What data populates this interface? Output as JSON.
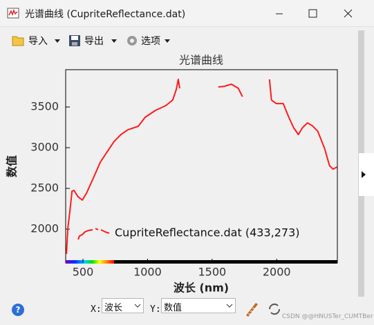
{
  "window": {
    "title": "光谱曲线 (CupriteReflectance.dat)"
  },
  "toolbar": {
    "items": [
      "导入",
      "导出",
      "选项"
    ]
  },
  "chart_data": {
    "type": "line",
    "title": "光谱曲线",
    "x_label": "波长 (nm)",
    "y_label": "数值",
    "x": [
      372,
      383,
      399,
      415,
      431,
      460,
      495,
      527,
      580,
      634,
      687,
      741,
      794,
      848,
      928,
      981,
      1061,
      1142,
      1195,
      1222,
      1238,
      1249,
      1400,
      1548,
      1596,
      1650,
      1703,
      1735,
      1850,
      1944,
      1960,
      1997,
      2051,
      2094,
      2131,
      2168,
      2200,
      2238,
      2275,
      2318,
      2371,
      2409,
      2436,
      2468
    ],
    "series": [
      {
        "name": "CupriteReflectance.dat (433,273)",
        "color": "#ff1a1a",
        "values": [
          1695,
          2017,
          2229,
          2466,
          2475,
          2400,
          2356,
          2441,
          2627,
          2822,
          2949,
          3076,
          3161,
          3220,
          3263,
          3373,
          3458,
          3517,
          3585,
          3712,
          3839,
          3729,
          null,
          3746,
          3754,
          3780,
          3729,
          3627,
          null,
          3839,
          3585,
          3542,
          3542,
          3373,
          3246,
          3161,
          3246,
          3305,
          3271,
          3203,
          2992,
          2780,
          2737,
          2763
        ]
      }
    ],
    "xlim": [
      366,
      2470
    ],
    "ylim": [
      1585,
      3958
    ],
    "xticks": [
      500,
      1000,
      1500,
      2000
    ],
    "yticks": [
      2000,
      2500,
      3000,
      3500
    ]
  },
  "controls": {
    "x_label": "X:",
    "x_value": "波长",
    "y_label": "Y:",
    "y_value": "数值"
  },
  "watermark": "CSDN @@HNUSTer_CUMTBer"
}
